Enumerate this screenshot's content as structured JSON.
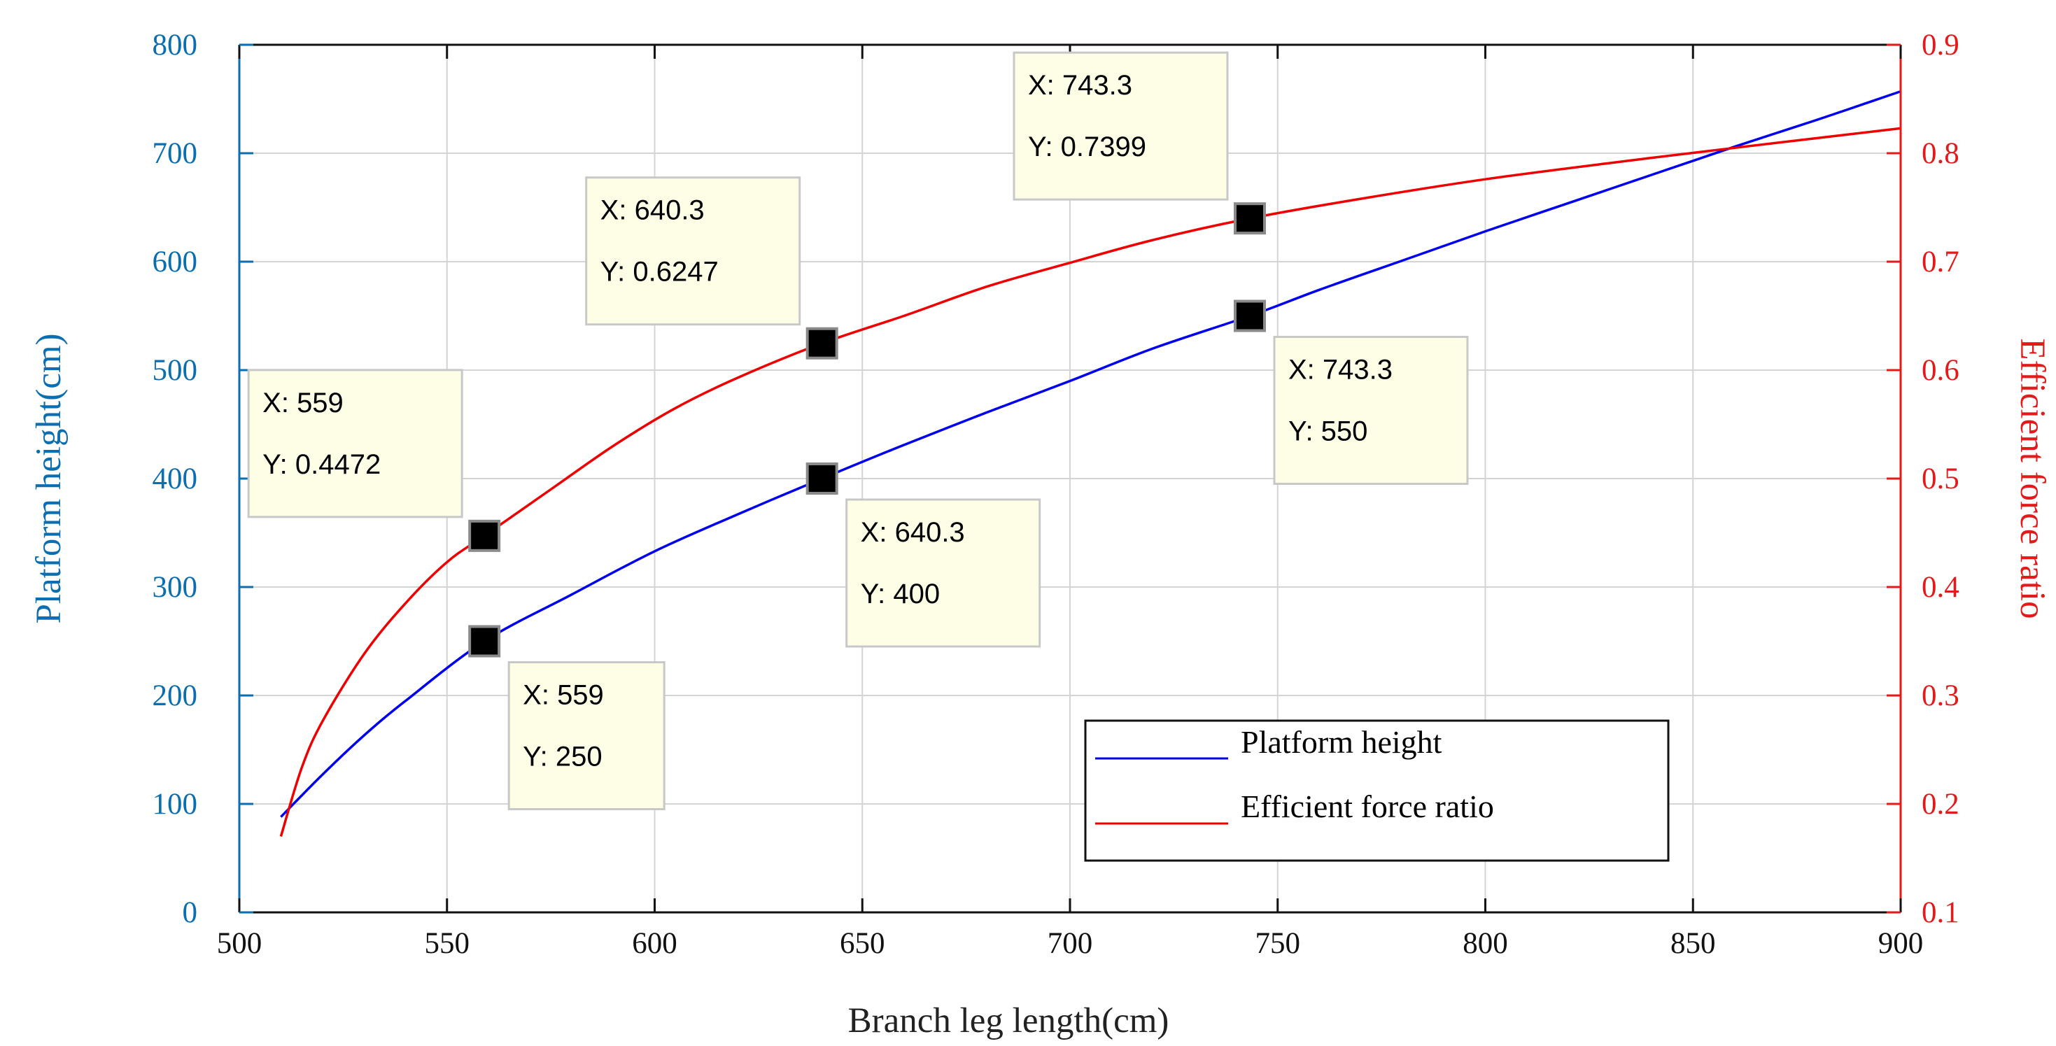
{
  "chart_data": {
    "type": "line",
    "x_axis": {
      "label": "Branch leg length(cm)",
      "range": [
        500,
        900
      ],
      "ticks": [
        500,
        550,
        600,
        650,
        700,
        750,
        800,
        850,
        900
      ]
    },
    "y_axis_left": {
      "label": "Platform height(cm)",
      "range": [
        0,
        800
      ],
      "ticks": [
        0,
        100,
        200,
        300,
        400,
        500,
        600,
        700,
        800
      ],
      "color": "#0b6eb0"
    },
    "y_axis_right": {
      "label": "Efficient force ratio",
      "range": [
        0.1,
        0.9
      ],
      "ticks": [
        "0.1",
        "0.2",
        "0.3",
        "0.4",
        "0.5",
        "0.6",
        "0.7",
        "0.8",
        "0.9"
      ],
      "color": "#e31a1a"
    },
    "grid": true,
    "series": [
      {
        "name": "Platform height",
        "axis": "left",
        "color": "#0000ee",
        "x": [
          510,
          520,
          530,
          540,
          559,
          580,
          600,
          620,
          640.3,
          660,
          680,
          700,
          720,
          743.3,
          760,
          780,
          800,
          820,
          840,
          860,
          880,
          900
        ],
        "values": [
          88,
          127,
          163,
          195,
          250,
          293,
          333,
          367,
          400,
          431,
          461,
          490,
          520,
          550,
          574,
          601,
          628,
          654,
          680,
          706,
          731,
          757
        ]
      },
      {
        "name": "Efficient force ratio",
        "axis": "right",
        "color": "#ee0000",
        "x": [
          510,
          515,
          520,
          530,
          540,
          550,
          559,
          575,
          590,
          605,
          620,
          640.3,
          660,
          680,
          700,
          720,
          743.3,
          770,
          800,
          830,
          860,
          900
        ],
        "values": [
          0.17,
          0.233,
          0.276,
          0.338,
          0.385,
          0.423,
          0.4472,
          0.49,
          0.53,
          0.565,
          0.593,
          0.6247,
          0.65,
          0.677,
          0.699,
          0.72,
          0.7399,
          0.758,
          0.776,
          0.791,
          0.805,
          0.823
        ]
      }
    ],
    "datatips": [
      {
        "series": "Platform height",
        "x_label": "X: 559",
        "y_label": "Y: 250",
        "x": 559,
        "y": 250
      },
      {
        "series": "Platform height",
        "x_label": "X: 640.3",
        "y_label": "Y: 400",
        "x": 640.3,
        "y": 400
      },
      {
        "series": "Platform height",
        "x_label": "X: 743.3",
        "y_label": "Y: 550",
        "x": 743.3,
        "y": 550
      },
      {
        "series": "Efficient force ratio",
        "x_label": "X: 559",
        "y_label": "Y: 0.4472",
        "x": 559,
        "y": 0.4472
      },
      {
        "series": "Efficient force ratio",
        "x_label": "X: 640.3",
        "y_label": "Y: 0.6247",
        "x": 640.3,
        "y": 0.6247
      },
      {
        "series": "Efficient force ratio",
        "x_label": "X: 743.3",
        "y_label": "Y: 0.7399",
        "x": 743.3,
        "y": 0.7399
      }
    ],
    "legend": {
      "position": "bottom-right",
      "entries": [
        "Platform height",
        "Efficient force ratio"
      ]
    }
  }
}
